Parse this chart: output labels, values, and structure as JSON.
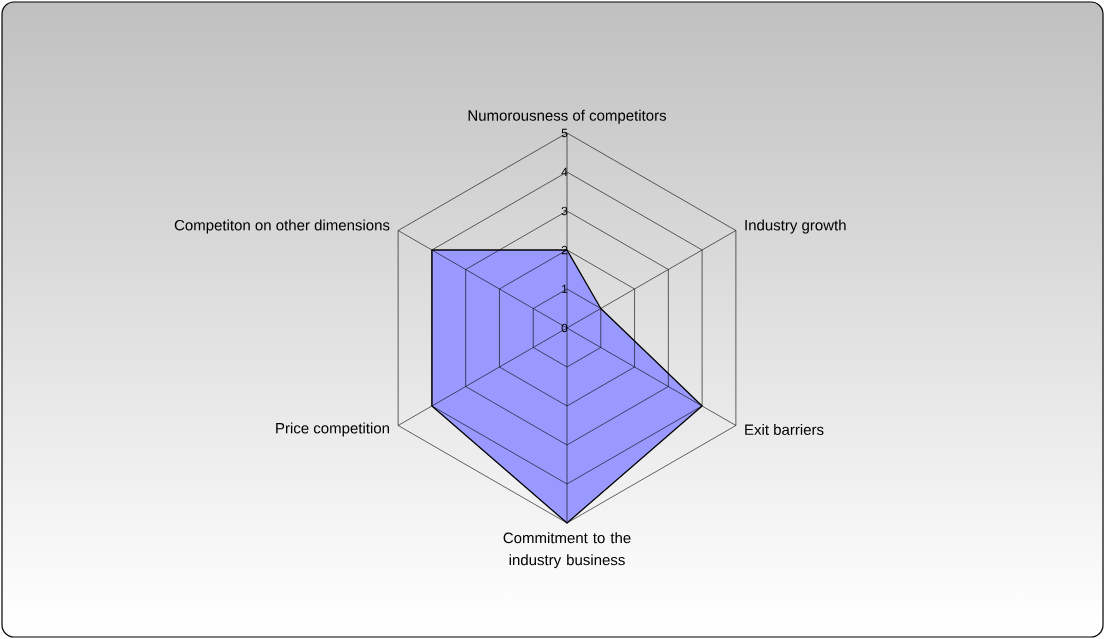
{
  "chart_data": {
    "type": "radar",
    "categories": [
      "Numorousness of competitors",
      "Industry growth",
      "Exit barriers",
      "Commitment to the industry business",
      "Price competition",
      "Competiton on other dimensions"
    ],
    "series": [
      {
        "color": "#9999ff",
        "values": [
          2,
          1,
          4,
          5,
          4,
          4
        ]
      }
    ],
    "ylim": [
      0,
      5
    ],
    "yticks": [
      0,
      1,
      2,
      3,
      4,
      5
    ],
    "grid": true
  }
}
